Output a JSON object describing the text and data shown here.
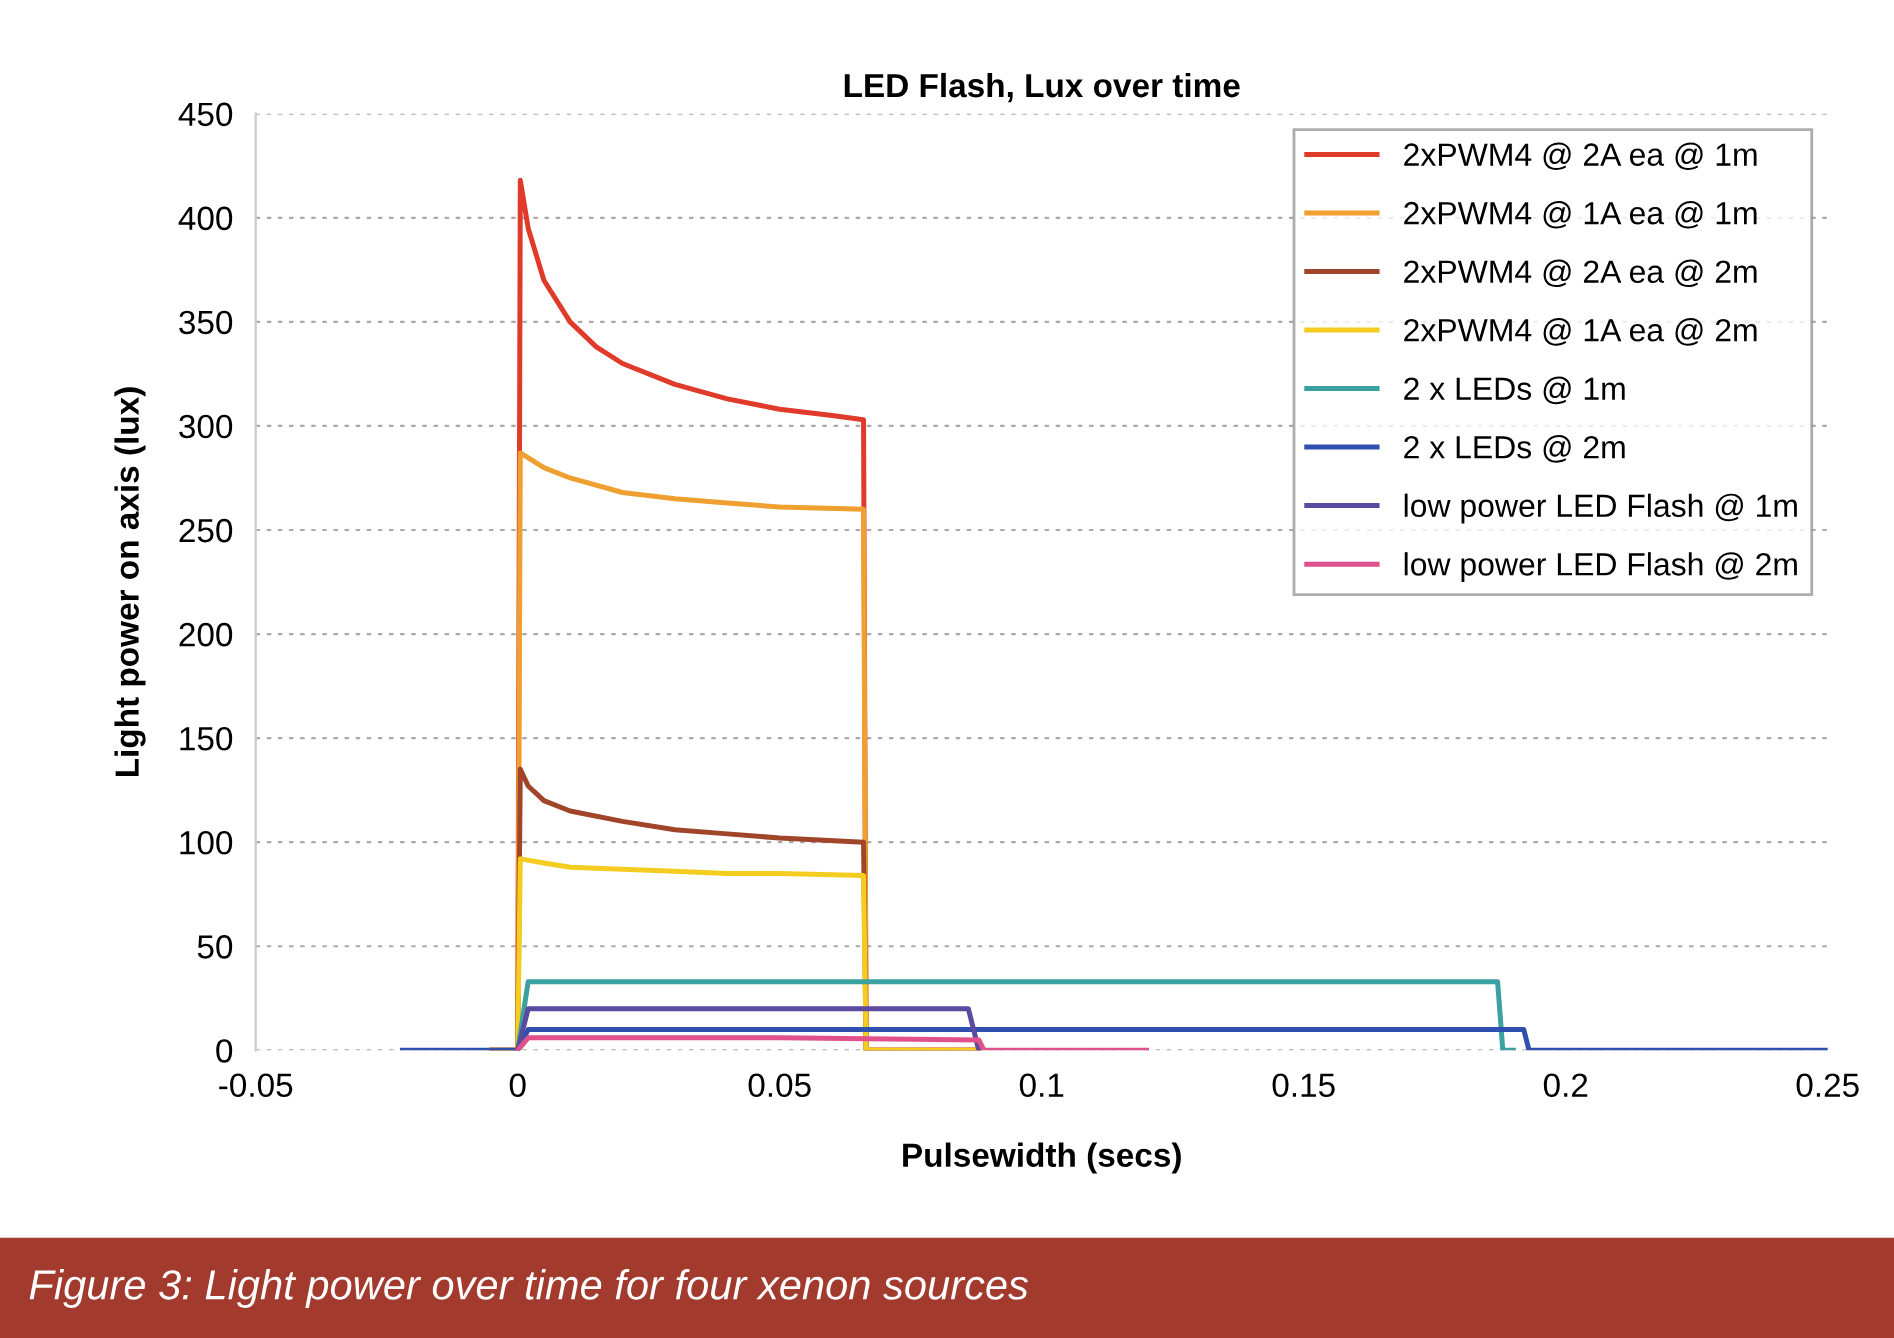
{
  "chart_data": {
    "type": "line",
    "title": "LED Flash, Lux over time",
    "xlabel": "Pulsewidth (secs)",
    "ylabel": "Light power on axis (lux)",
    "annotations": [
      "Figure 3: Light power over time for four xenon sources"
    ],
    "xlim": [
      -0.05,
      0.25
    ],
    "xticks": [
      -0.05,
      0,
      0.05,
      0.1,
      0.15,
      0.2,
      0.25
    ],
    "ylim": [
      0,
      450
    ],
    "yticks": [
      0,
      50,
      100,
      150,
      200,
      250,
      300,
      350,
      400,
      450
    ],
    "grid": "y",
    "legend": "top right",
    "marker": "none",
    "line_style": "solid",
    "series": [
      {
        "name": "2xPWM4 @ 2A ea @ 1m",
        "color": "#e03a2a",
        "x": [
          -0.005,
          0,
          0.0005,
          0.002,
          0.005,
          0.01,
          0.015,
          0.02,
          0.03,
          0.04,
          0.05,
          0.06,
          0.066,
          0.0665,
          0.088
        ],
        "values": [
          0,
          0,
          418,
          395,
          370,
          350,
          338,
          330,
          320,
          313,
          308,
          305,
          303,
          0,
          0
        ]
      },
      {
        "name": "2xPWM4 @ 1A ea @ 1m",
        "color": "#f0a030",
        "x": [
          -0.005,
          0,
          0.0005,
          0.005,
          0.01,
          0.02,
          0.03,
          0.04,
          0.05,
          0.066,
          0.0665,
          0.088
        ],
        "values": [
          0,
          0,
          287,
          280,
          275,
          268,
          265,
          263,
          261,
          260,
          0,
          0
        ]
      },
      {
        "name": "2xPWM4 @ 2A ea @ 2m",
        "color": "#a0452a",
        "x": [
          -0.005,
          0,
          0.0005,
          0.002,
          0.005,
          0.01,
          0.02,
          0.03,
          0.04,
          0.05,
          0.066,
          0.0665,
          0.088
        ],
        "values": [
          0,
          0,
          135,
          127,
          120,
          115,
          110,
          106,
          104,
          102,
          100,
          0,
          0
        ]
      },
      {
        "name": "2xPWM4 @ 1A ea @ 2m",
        "color": "#f5cc20",
        "x": [
          -0.005,
          0,
          0.0005,
          0.005,
          0.01,
          0.02,
          0.03,
          0.04,
          0.05,
          0.066,
          0.0665,
          0.088
        ],
        "values": [
          0,
          0,
          92,
          90,
          88,
          87,
          86,
          85,
          85,
          84,
          0,
          0
        ]
      },
      {
        "name": "2 x LEDs @ 1m",
        "color": "#3aa0a0",
        "x": [
          0,
          0.002,
          0.1,
          0.187,
          0.188,
          0.19
        ],
        "values": [
          0,
          33,
          33,
          33,
          0,
          0
        ]
      },
      {
        "name": "2 x LEDs @ 2m",
        "color": "#3050b0",
        "x": [
          -0.022,
          0,
          0.002,
          0.1,
          0.192,
          0.193,
          0.25
        ],
        "values": [
          0,
          0,
          10,
          10,
          10,
          0,
          0
        ]
      },
      {
        "name": "low power LED Flash @ 1m",
        "color": "#5a4aa0",
        "x": [
          0,
          0.002,
          0.05,
          0.086,
          0.088
        ],
        "values": [
          0,
          20,
          20,
          20,
          0
        ]
      },
      {
        "name": "low power LED Flash @ 2m",
        "color": "#e0508a",
        "x": [
          0,
          0.002,
          0.05,
          0.088,
          0.089,
          0.12
        ],
        "values": [
          0,
          6,
          6,
          5,
          0,
          0
        ]
      }
    ]
  }
}
